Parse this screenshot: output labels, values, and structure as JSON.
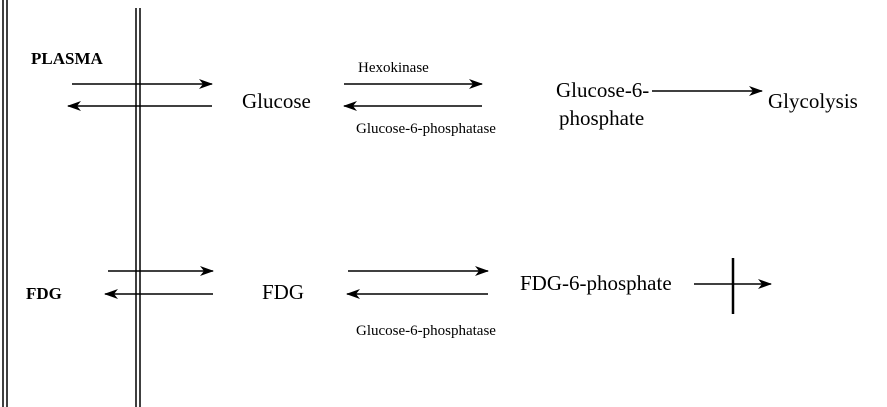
{
  "labels": {
    "plasma": "PLASMA",
    "fdg_left": "FDG",
    "glucose": "Glucose",
    "hexokinase": "Hexokinase",
    "g6pase_top": "Glucose-6-phosphatase",
    "g6p_line1": "Glucose-6-",
    "g6p_line2": "phosphate",
    "glycolysis": "Glycolysis",
    "fdg": "FDG",
    "fdg6p": "FDG-6-phosphate",
    "g6pase_bottom": "Glucose-6-phosphatase"
  }
}
